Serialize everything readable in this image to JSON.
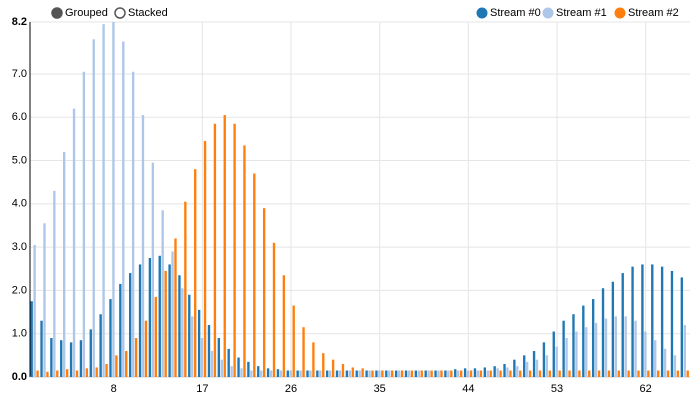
{
  "chart_data": {
    "type": "bar",
    "controls": [
      "Grouped",
      "Stacked"
    ],
    "categories": [
      null,
      null,
      null,
      null,
      null,
      null,
      null,
      null,
      8,
      null,
      null,
      null,
      null,
      null,
      null,
      null,
      null,
      17,
      null,
      null,
      null,
      null,
      null,
      null,
      null,
      null,
      26,
      null,
      null,
      null,
      null,
      null,
      null,
      null,
      null,
      35,
      null,
      null,
      null,
      null,
      null,
      null,
      null,
      null,
      44,
      null,
      null,
      null,
      null,
      null,
      null,
      null,
      null,
      53,
      null,
      null,
      null,
      null,
      null,
      null,
      null,
      null,
      62,
      null,
      null,
      null,
      null
    ],
    "series": [
      {
        "name": "Stream #0",
        "color": "#1f77b4",
        "values": [
          1.75,
          1.3,
          0.9,
          0.85,
          0.8,
          0.85,
          1.1,
          1.45,
          1.8,
          2.15,
          2.4,
          2.6,
          2.75,
          2.8,
          2.6,
          2.35,
          1.9,
          1.55,
          1.2,
          0.9,
          0.65,
          0.45,
          0.35,
          0.25,
          0.2,
          0.18,
          0.15,
          0.15,
          0.15,
          0.15,
          0.15,
          0.15,
          0.15,
          0.15,
          0.15,
          0.15,
          0.15,
          0.15,
          0.15,
          0.15,
          0.15,
          0.15,
          0.15,
          0.18,
          0.2,
          0.2,
          0.22,
          0.25,
          0.3,
          0.4,
          0.5,
          0.6,
          0.8,
          1.05,
          1.3,
          1.45,
          1.65,
          1.8,
          2.05,
          2.2,
          2.4,
          2.55,
          2.6,
          2.6,
          2.55,
          2.45,
          2.3
        ]
      },
      {
        "name": "Stream #1",
        "color": "#aec7e8",
        "values": [
          3.05,
          3.55,
          4.3,
          5.2,
          6.2,
          7.05,
          7.8,
          8.15,
          8.2,
          7.75,
          7.05,
          6.05,
          4.95,
          3.85,
          2.9,
          2.05,
          1.4,
          0.9,
          0.6,
          0.4,
          0.25,
          0.2,
          0.15,
          0.15,
          0.15,
          0.15,
          0.15,
          0.15,
          0.15,
          0.15,
          0.15,
          0.15,
          0.15,
          0.15,
          0.15,
          0.15,
          0.15,
          0.15,
          0.15,
          0.15,
          0.15,
          0.15,
          0.15,
          0.15,
          0.15,
          0.15,
          0.15,
          0.2,
          0.22,
          0.25,
          0.35,
          0.4,
          0.5,
          0.7,
          0.9,
          1.05,
          1.15,
          1.25,
          1.35,
          1.4,
          1.4,
          1.3,
          1.05,
          0.85,
          0.65,
          0.5,
          1.2
        ]
      },
      {
        "name": "Stream #2",
        "color": "#ff7f0e",
        "values": [
          0.15,
          0.12,
          0.15,
          0.18,
          0.15,
          0.2,
          0.22,
          0.3,
          0.5,
          0.6,
          0.9,
          1.3,
          1.85,
          2.45,
          3.2,
          4.05,
          4.8,
          5.45,
          5.85,
          6.05,
          5.85,
          5.35,
          4.7,
          3.9,
          3.1,
          2.35,
          1.65,
          1.15,
          0.8,
          0.55,
          0.4,
          0.3,
          0.22,
          0.2,
          0.15,
          0.15,
          0.15,
          0.15,
          0.15,
          0.15,
          0.15,
          0.15,
          0.15,
          0.15,
          0.15,
          0.15,
          0.15,
          0.15,
          0.15,
          0.15,
          0.15,
          0.15,
          0.15,
          0.15,
          0.15,
          0.15,
          0.15,
          0.15,
          0.15,
          0.15,
          0.15,
          0.15,
          0.15,
          0.15,
          0.15,
          0.15,
          0.15
        ]
      }
    ],
    "ylim": [
      0,
      8.2
    ],
    "yticks": [
      {
        "value": 0,
        "label": "0.0"
      },
      {
        "value": 1,
        "label": "1.0"
      },
      {
        "value": 2,
        "label": "2.0"
      },
      {
        "value": 3,
        "label": "3.0"
      },
      {
        "value": 4,
        "label": "4.0"
      },
      {
        "value": 5,
        "label": "5.0"
      },
      {
        "value": 6,
        "label": "6.0"
      },
      {
        "value": 7,
        "label": "7.0"
      },
      {
        "value": 8.2,
        "label": "8.2"
      }
    ],
    "grid": true
  }
}
